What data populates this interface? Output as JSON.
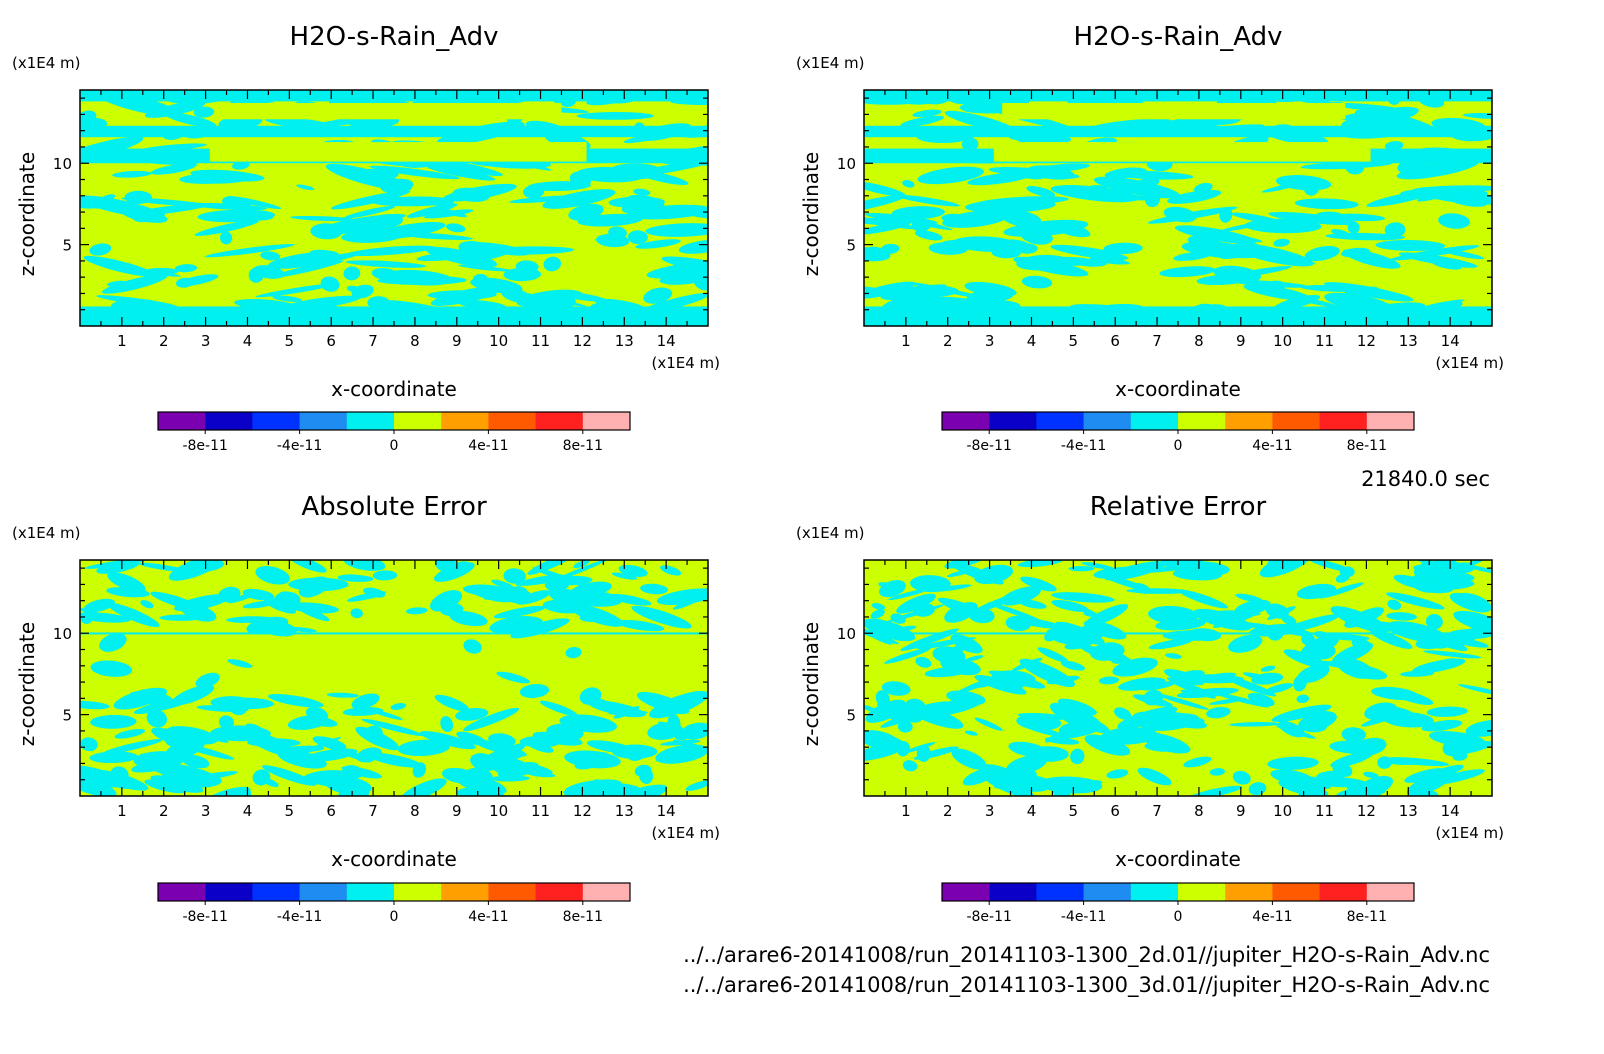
{
  "colors": {
    "levels": [
      "#7a00b0",
      "#0a00c8",
      "#0032ff",
      "#1e8cf0",
      "#00f0f0",
      "#ccff00",
      "#ffa000",
      "#ff5a00",
      "#ff2020",
      "#ffb0b0"
    ],
    "negative_fill": "#00f0f0",
    "positive_fill": "#ccff00"
  },
  "colorbar": {
    "tick_labels": [
      "-8e-11",
      "-4e-11",
      "0",
      "4e-11",
      "8e-11"
    ]
  },
  "time_label": "21840.0 sec",
  "file_paths": [
    "../../arare6-20141008/run_20141103-1300_2d.01//jupiter_H2O-s-Rain_Adv.nc",
    "../../arare6-20141008/run_20141103-1300_3d.01//jupiter_H2O-s-Rain_Adv.nc"
  ],
  "chart_data": [
    {
      "type": "heatmap",
      "title": "H2O-s-Rain_Adv",
      "xlabel": "x-coordinate",
      "ylabel": "z-coordinate",
      "x_unit": "(x1E4 m)",
      "y_unit": "(x1E4 m)",
      "xlim": [
        0,
        15
      ],
      "ylim": [
        0,
        14.5
      ],
      "x_ticks": [
        1,
        2,
        3,
        4,
        5,
        6,
        7,
        8,
        9,
        10,
        11,
        12,
        13,
        14
      ],
      "y_ticks": [
        5,
        10
      ],
      "levels": [
        -1e-10,
        -8e-11,
        -6e-11,
        -4e-11,
        -2e-11,
        0,
        2e-11,
        4e-11,
        6e-11,
        8e-11,
        1e-10
      ]
    },
    {
      "type": "heatmap",
      "title": "H2O-s-Rain_Adv",
      "xlabel": "x-coordinate",
      "ylabel": "z-coordinate",
      "x_unit": "(x1E4 m)",
      "y_unit": "(x1E4 m)",
      "xlim": [
        0,
        15
      ],
      "ylim": [
        0,
        14.5
      ],
      "x_ticks": [
        1,
        2,
        3,
        4,
        5,
        6,
        7,
        8,
        9,
        10,
        11,
        12,
        13,
        14
      ],
      "y_ticks": [
        5,
        10
      ],
      "levels": [
        -1e-10,
        -8e-11,
        -6e-11,
        -4e-11,
        -2e-11,
        0,
        2e-11,
        4e-11,
        6e-11,
        8e-11,
        1e-10
      ]
    },
    {
      "type": "heatmap",
      "title": "Absolute Error",
      "xlabel": "x-coordinate",
      "ylabel": "z-coordinate",
      "x_unit": "(x1E4 m)",
      "y_unit": "(x1E4 m)",
      "xlim": [
        0,
        15
      ],
      "ylim": [
        0,
        14.5
      ],
      "x_ticks": [
        1,
        2,
        3,
        4,
        5,
        6,
        7,
        8,
        9,
        10,
        11,
        12,
        13,
        14
      ],
      "y_ticks": [
        5,
        10
      ],
      "levels": [
        -1e-10,
        -8e-11,
        -6e-11,
        -4e-11,
        -2e-11,
        0,
        2e-11,
        4e-11,
        6e-11,
        8e-11,
        1e-10
      ]
    },
    {
      "type": "heatmap",
      "title": "Relative Error",
      "xlabel": "x-coordinate",
      "ylabel": "z-coordinate",
      "x_unit": "(x1E4 m)",
      "y_unit": "(x1E4 m)",
      "xlim": [
        0,
        15
      ],
      "ylim": [
        0,
        14.5
      ],
      "x_ticks": [
        1,
        2,
        3,
        4,
        5,
        6,
        7,
        8,
        9,
        10,
        11,
        12,
        13,
        14
      ],
      "y_ticks": [
        5,
        10
      ],
      "levels": [
        -1e-10,
        -8e-11,
        -6e-11,
        -4e-11,
        -2e-11,
        0,
        2e-11,
        4e-11,
        6e-11,
        8e-11,
        1e-10
      ]
    }
  ]
}
